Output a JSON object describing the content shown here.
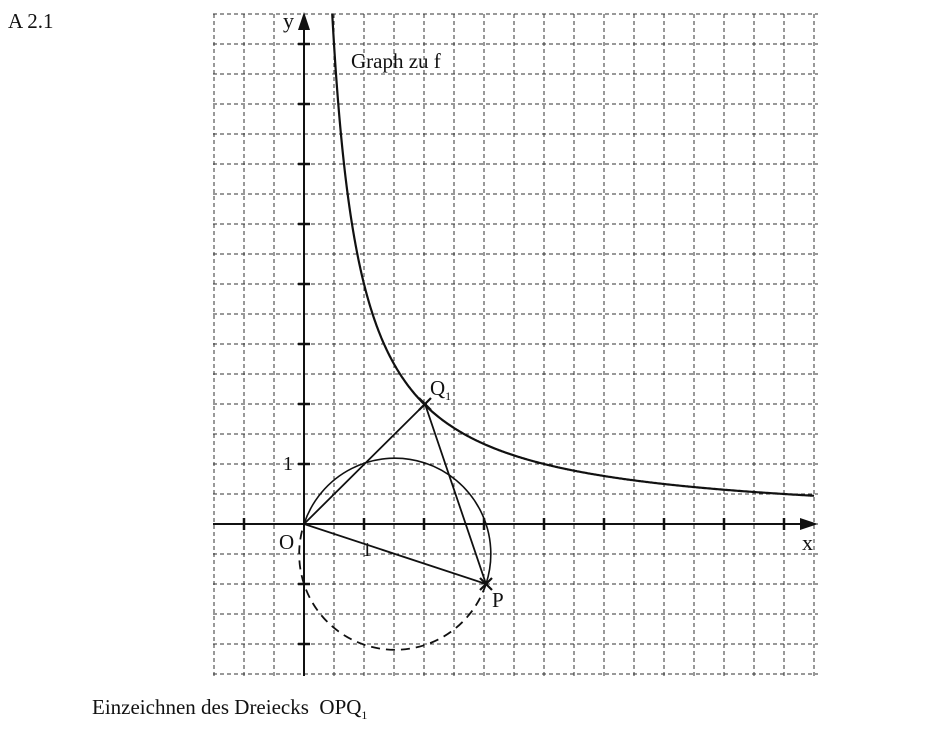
{
  "header": {
    "label": "A 2.1"
  },
  "axes": {
    "x": "x",
    "y": "y",
    "one_x": "1",
    "one_y": "1"
  },
  "graph_label": "Graph zu f",
  "points": {
    "origin": "O",
    "p": "P",
    "q1": {
      "main": "Q",
      "sub": "1"
    }
  },
  "caption": {
    "text": "Einzeichnen des Dreiecks  OPQ",
    "sub": "1"
  }
}
